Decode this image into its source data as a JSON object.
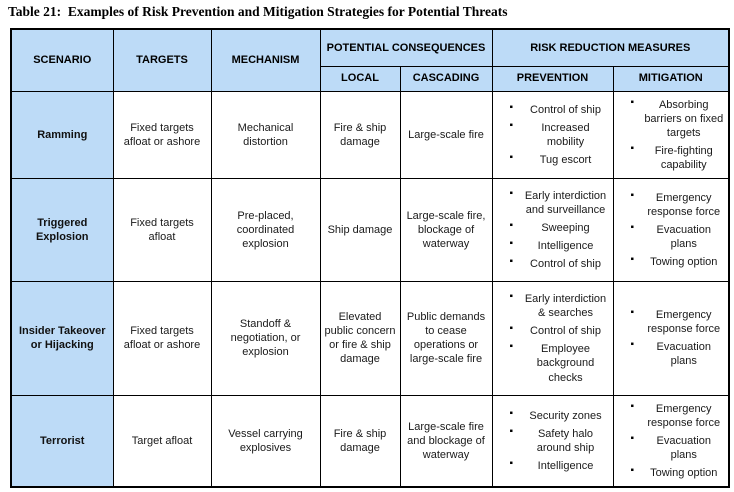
{
  "title": "Table 21:  Examples of Risk Prevention and Mitigation Strategies for Potential Threats",
  "colors": {
    "header_bg": "#bddbf7",
    "border": "#000000",
    "background": "#ffffff"
  },
  "header": {
    "scenario": "SCENARIO",
    "targets": "TARGETS",
    "mechanism": "MECHANISM",
    "potential_consequences": "POTENTIAL CONSEQUENCES",
    "risk_reduction": "RISK REDUCTION MEASURES",
    "local": "LOCAL",
    "cascading": "CASCADING",
    "prevention": "PREVENTION",
    "mitigation": "MITIGATION"
  },
  "rows": [
    {
      "scenario": "Ramming",
      "targets": "Fixed targets afloat or ashore",
      "mechanism": "Mechanical distortion",
      "local": "Fire & ship damage",
      "cascading": "Large-scale fire",
      "prevention": [
        "Control of ship",
        "Increased mobility",
        "Tug escort"
      ],
      "mitigation": [
        "Absorbing barriers on fixed targets",
        "Fire-fighting capability"
      ]
    },
    {
      "scenario": "Triggered Explosion",
      "targets": "Fixed targets afloat",
      "mechanism": "Pre-placed, coordinated explosion",
      "local": "Ship damage",
      "cascading": "Large-scale fire, blockage of waterway",
      "prevention": [
        "Early interdiction and surveillance",
        "Sweeping",
        "Intelligence",
        "Control of ship"
      ],
      "mitigation": [
        "Emergency response force",
        "Evacuation plans",
        "Towing option"
      ]
    },
    {
      "scenario": "Insider Takeover or Hijacking",
      "targets": "Fixed targets afloat or ashore",
      "mechanism": "Standoff & negotiation, or explosion",
      "local": "Elevated public concern or fire & ship damage",
      "cascading": "Public demands to cease operations or large-scale fire",
      "prevention": [
        "Early interdiction & searches",
        "Control of ship",
        "Employee background checks"
      ],
      "mitigation": [
        "Emergency response force",
        "Evacuation plans"
      ]
    },
    {
      "scenario": "Terrorist",
      "targets": "Target afloat",
      "mechanism": "Vessel carrying explosives",
      "local": "Fire & ship damage",
      "cascading": "Large-scale fire and blockage of waterway",
      "prevention": [
        "Security zones",
        "Safety halo around ship",
        "Intelligence"
      ],
      "mitigation": [
        "Emergency response force",
        "Evacuation plans",
        "Towing option"
      ]
    }
  ]
}
